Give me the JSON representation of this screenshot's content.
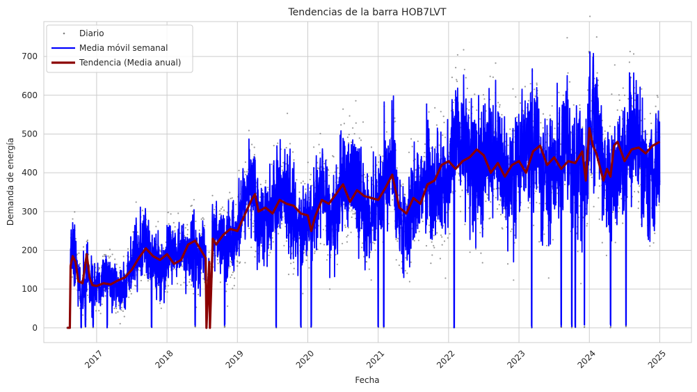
{
  "chart_data": {
    "type": "line",
    "title": "Tendencias de la barra HOB7LVT",
    "xlabel": "Fecha",
    "ylabel": "Demanda de energía",
    "xlim": [
      2016.25,
      2025.45
    ],
    "ylim": [
      -38,
      790
    ],
    "x_ticks": [
      2017,
      2018,
      2019,
      2020,
      2021,
      2022,
      2023,
      2024,
      2025
    ],
    "x_tick_labels": [
      "2017",
      "2018",
      "2019",
      "2020",
      "2021",
      "2022",
      "2023",
      "2024",
      "2025"
    ],
    "y_ticks": [
      0,
      100,
      200,
      300,
      400,
      500,
      600,
      700
    ],
    "y_tick_labels": [
      "0",
      "100",
      "200",
      "300",
      "400",
      "500",
      "600",
      "700"
    ],
    "grid": true,
    "legend_position": "top-left",
    "colors": {
      "daily": "#808080",
      "weekly": "#0000ff",
      "annual": "#8b0000",
      "grid": "#cccccc",
      "axis": "#cccccc"
    },
    "series": [
      {
        "name": "Diario",
        "style": "scatter"
      },
      {
        "name": "Media móvil semanal",
        "style": "line"
      },
      {
        "name": "Tendencia (Media anual)",
        "style": "line",
        "x": [
          2016.58,
          2016.62,
          2016.63,
          2016.66,
          2016.7,
          2016.74,
          2016.8,
          2016.86,
          2016.9,
          2016.94,
          2017.0,
          2017.1,
          2017.2,
          2017.3,
          2017.4,
          2017.5,
          2017.6,
          2017.7,
          2017.8,
          2017.9,
          2018.0,
          2018.1,
          2018.2,
          2018.3,
          2018.4,
          2018.5,
          2018.55,
          2018.56,
          2018.6,
          2018.61,
          2018.65,
          2018.7,
          2018.8,
          2018.9,
          2019.0,
          2019.1,
          2019.2,
          2019.25,
          2019.3,
          2019.4,
          2019.5,
          2019.6,
          2019.7,
          2019.8,
          2019.9,
          2020.0,
          2020.05,
          2020.1,
          2020.2,
          2020.3,
          2020.4,
          2020.5,
          2020.6,
          2020.7,
          2020.8,
          2020.9,
          2021.0,
          2021.1,
          2021.2,
          2021.3,
          2021.4,
          2021.5,
          2021.6,
          2021.7,
          2021.8,
          2021.9,
          2022.0,
          2022.1,
          2022.2,
          2022.3,
          2022.4,
          2022.5,
          2022.6,
          2022.7,
          2022.8,
          2022.9,
          2023.0,
          2023.1,
          2023.2,
          2023.3,
          2023.4,
          2023.5,
          2023.6,
          2023.7,
          2023.8,
          2023.9,
          2023.95,
          2024.0,
          2024.05,
          2024.1,
          2024.2,
          2024.25,
          2024.3,
          2024.35,
          2024.4,
          2024.5,
          2024.6,
          2024.7,
          2024.8,
          2024.9,
          2025.0
        ],
        "y": [
          0,
          0,
          160,
          185,
          170,
          120,
          115,
          190,
          130,
          110,
          108,
          115,
          112,
          122,
          130,
          150,
          180,
          205,
          185,
          175,
          190,
          165,
          175,
          215,
          225,
          195,
          180,
          0,
          170,
          0,
          230,
          215,
          240,
          255,
          250,
          290,
          330,
          345,
          300,
          310,
          295,
          330,
          320,
          315,
          295,
          290,
          250,
          285,
          330,
          320,
          345,
          370,
          325,
          355,
          340,
          335,
          330,
          360,
          395,
          310,
          295,
          335,
          320,
          370,
          380,
          420,
          430,
          410,
          430,
          440,
          460,
          445,
          400,
          425,
          390,
          420,
          430,
          400,
          455,
          470,
          420,
          440,
          410,
          430,
          425,
          455,
          380,
          515,
          470,
          450,
          380,
          410,
          390,
          470,
          480,
          430,
          460,
          465,
          450,
          470,
          480
        ]
      }
    ],
    "legend": {
      "entries": [
        "Diario",
        "Media móvil semanal",
        "Tendencia (Media anual)"
      ]
    }
  }
}
